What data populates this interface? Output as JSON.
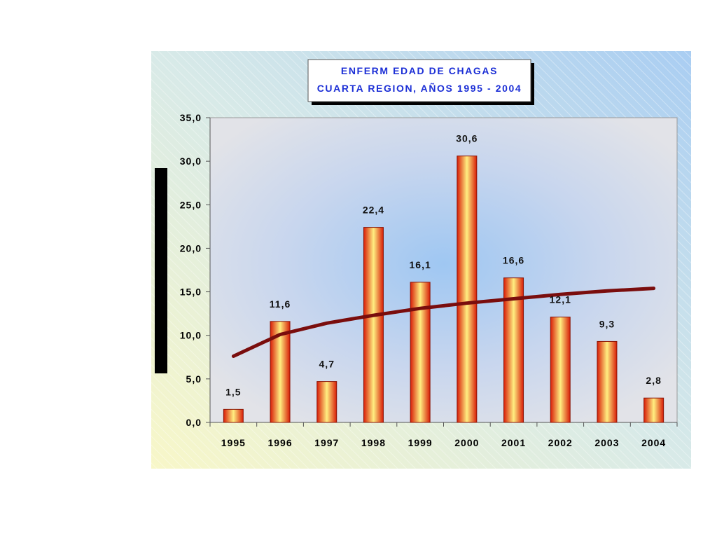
{
  "chart_data": {
    "type": "bar",
    "title_lines": [
      "ENFERM EDAD DE CHAGAS",
      "CUARTA REGION, AÑOS 1995 - 2004"
    ],
    "categories": [
      "1995",
      "1996",
      "1997",
      "1998",
      "1999",
      "2000",
      "2001",
      "2002",
      "2003",
      "2004"
    ],
    "series": [
      {
        "values": [
          1.5,
          11.6,
          4.7,
          22.4,
          16.1,
          30.6,
          16.6,
          12.1,
          9.3,
          2.8
        ]
      }
    ],
    "data_labels": [
      "1,5",
      "11,6",
      "4,7",
      "22,4",
      "16,1",
      "30,6",
      "16,6",
      "12,1",
      "9,3",
      "2,8"
    ],
    "trendline": {
      "type": "logarithmic",
      "values": [
        7.6,
        10.1,
        11.4,
        12.3,
        13.1,
        13.7,
        14.2,
        14.7,
        15.1,
        15.4
      ]
    },
    "yticks": [
      "0,0",
      "5,0",
      "10,0",
      "15,0",
      "20,0",
      "25,0",
      "30,0",
      "35,0"
    ],
    "ylim": [
      0,
      35
    ],
    "ystep": 5,
    "grid": false,
    "legend": "none",
    "colors": {
      "title_text": "#1c2fd6",
      "bar_edge": "#d81d08",
      "bar_center": "#ffee80",
      "trendline": "#7a0d0d",
      "plot_bg": "#dfe2ea",
      "outer_bg_left": "#f8f7c8",
      "outer_bg_right": "#a9cdf2"
    }
  }
}
